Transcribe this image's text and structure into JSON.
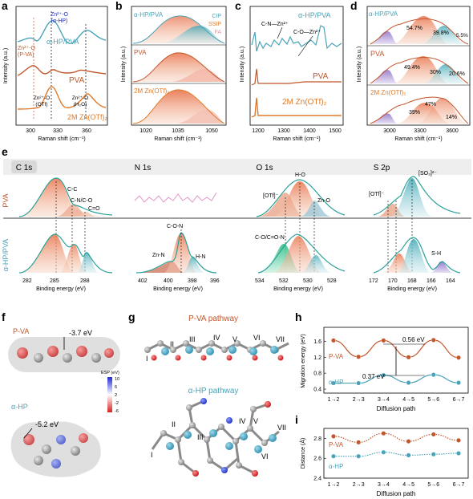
{
  "colors": {
    "pva": "#c2562b",
    "ahp": "#4aa3b8",
    "zn": "#e07a2a",
    "teal": "#2aa198",
    "panelbg": "#f2f2f2"
  },
  "panels": {
    "a": "a",
    "b": "b",
    "c": "c",
    "d": "d",
    "e": "e",
    "f": "f",
    "g": "g",
    "h": "h",
    "i": "i"
  },
  "panel_a": {
    "ylabel": "Intensity (a.u.)",
    "xlabel": "Raman shift (cm⁻¹)",
    "ticks": [
      "300",
      "330",
      "360"
    ],
    "series_labels": [
      "α-HP/PVA",
      "PVA",
      "2M Zn(OTf)₂"
    ],
    "ann_ahp": "Zn²⁺-O",
    "ann_ahp2": "(α-HP)",
    "ann_pva": "Zn²⁺-O",
    "ann_pva2": "(P-VA)",
    "ann_otf": "Zn²⁺-O",
    "ann_otf2": "(OTf)",
    "ann_h2o": "Zn²⁺-O",
    "ann_h2o2": "(H₂O)"
  },
  "panel_b": {
    "ylabel": "Intensity (a.u.)",
    "xlabel": "Raman shift (cm⁻¹)",
    "ticks": [
      "1020",
      "1035",
      "1050"
    ],
    "labels": [
      "α-HP/PVA",
      "PVA",
      "2M Zn(OTf)₂"
    ],
    "legend": [
      "CIP",
      "SSIP",
      "FA"
    ]
  },
  "panel_c": {
    "ylabel": "Intensity (a.u.)",
    "xlabel": "Raman shift (cm⁻¹)",
    "ticks": [
      "1200",
      "1300",
      "1400",
      "1500"
    ],
    "labels": [
      "α-HP/PVA",
      "PVA",
      "2M Zn(OTf)₂"
    ],
    "ann1": "C-N—Zn²⁺",
    "ann2": "C-O—Zn²⁺"
  },
  "panel_d": {
    "ylabel": "Intensity (a.u.)",
    "xlabel": "Raman shift (cm⁻¹)",
    "ticks": [
      "3000",
      "3300",
      "3600"
    ],
    "rows": [
      {
        "label": "α-HP/PVA",
        "p1": "54.7%",
        "p2": "39.8%",
        "p3": "5.5%"
      },
      {
        "label": "PVA",
        "p1": "49.4%",
        "p2": "30%",
        "p3": "20.6%"
      },
      {
        "label": "2M Zn(OTf)₂",
        "p1": "39%",
        "p2": "47%",
        "p3": "14%"
      }
    ]
  },
  "panel_e": {
    "headers": [
      "C 1s",
      "N 1s",
      "O 1s",
      "S 2p"
    ],
    "row_labels": [
      "PVA",
      "α-HP/PVA"
    ],
    "xlabel": "Binding energy (eV)",
    "c_ticks": [
      "282",
      "285",
      "288"
    ],
    "n_ticks": [
      "402",
      "400",
      "398",
      "396"
    ],
    "o_ticks": [
      "534",
      "532",
      "530",
      "528"
    ],
    "s_ticks": [
      "172",
      "170",
      "168",
      "166",
      "164"
    ],
    "c_ann": [
      "C-C",
      "C-N/C-O",
      "C=O"
    ],
    "n_ann": [
      "C-O-N",
      "Zn-N",
      "H-N"
    ],
    "o_ann": [
      "H-O",
      "[OTf]⁻",
      "Zn-O",
      "C-O/C=O-N"
    ],
    "s_ann": [
      "[SO₃]²⁻",
      "[OTf]⁻",
      "S-H"
    ]
  },
  "panel_f": {
    "top_label": "P-VA",
    "top_val": "-3.7 eV",
    "bottom_label": "α-HP",
    "bottom_val": "-5.2 eV",
    "scale_title": "ESP (eV)",
    "scale_ticks": [
      "10",
      "6",
      "2",
      "-2",
      "-6"
    ]
  },
  "panel_g": {
    "top_title": "P-VA pathway",
    "bottom_title": "α-HP pathway",
    "romans": [
      "I",
      "II",
      "III",
      "IV",
      "V",
      "VI",
      "VII"
    ]
  },
  "panel_h": {
    "ylabel": "Migration energy (eV)",
    "xlabel": "Diffusion path",
    "yticks": [
      "1.6",
      "1.2",
      "0.8",
      "0.4"
    ],
    "ann1": "0.56 eV",
    "ann2": "0.37 eV"
  },
  "panel_i": {
    "ylabel": "Distance (Å)",
    "xlabel": "Diffusion path",
    "yticks": [
      "2.8",
      "2.6",
      "2.4"
    ]
  },
  "chart_data": [
    {
      "type": "line",
      "title": "",
      "xlabel": "Diffusion path",
      "ylabel": "Migration energy (eV)",
      "categories": [
        "1→2",
        "2→3",
        "3→4",
        "4→5",
        "5→6",
        "6→7"
      ],
      "ylim": [
        0.3,
        1.95
      ],
      "series": [
        {
          "name": "P-VA",
          "values": [
            1.62,
            1.21,
            1.62,
            1.2,
            1.63,
            1.19
          ]
        },
        {
          "name": "α-HP",
          "values": [
            0.55,
            0.55,
            0.75,
            0.56,
            0.76,
            0.56
          ]
        }
      ]
    },
    {
      "type": "line",
      "title": "",
      "xlabel": "Diffusion path",
      "ylabel": "Distance (Å)",
      "categories": [
        "1→2",
        "2→3",
        "3→4",
        "4→5",
        "5→6",
        "6→7"
      ],
      "ylim": [
        2.4,
        2.9
      ],
      "series": [
        {
          "name": "P-VA",
          "values": [
            2.82,
            2.76,
            2.85,
            2.77,
            2.84,
            2.78
          ]
        },
        {
          "name": "α-HP",
          "values": [
            2.62,
            2.62,
            2.66,
            2.63,
            2.64,
            2.65
          ]
        }
      ]
    }
  ]
}
